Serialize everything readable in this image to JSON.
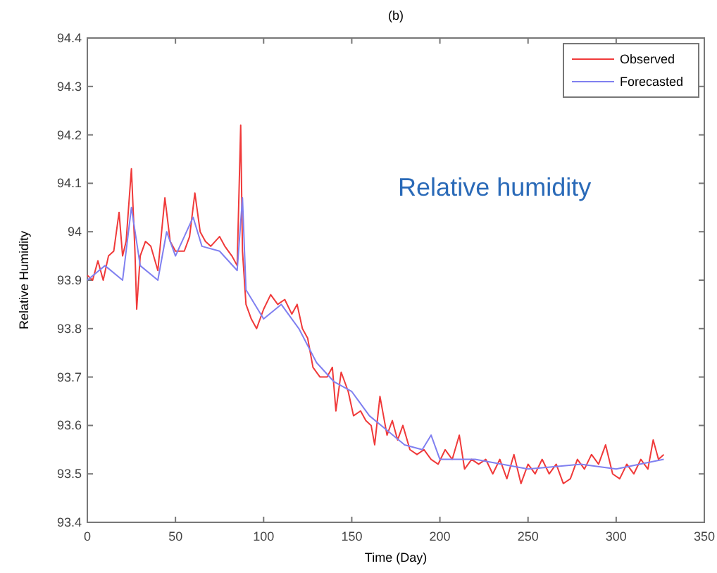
{
  "chart_data": {
    "type": "line",
    "title": "(b)",
    "xlabel": "Time (Day)",
    "ylabel": "Relative Humidity",
    "annotations": [
      "Relative humidity"
    ],
    "xlim": [
      0,
      350
    ],
    "xticks": [
      0,
      50,
      100,
      150,
      200,
      250,
      300,
      350
    ],
    "ylim": [
      93.4,
      94.4
    ],
    "yticks": [
      93.4,
      93.5,
      93.6,
      93.7,
      93.8,
      93.9,
      94,
      94.1,
      94.2,
      94.3,
      94.4
    ],
    "legend": "top right",
    "grid": false,
    "series": [
      {
        "name": "Observed",
        "color": "#f03a3a",
        "x": [
          0,
          3,
          6,
          9,
          12,
          15,
          18,
          20,
          22,
          25,
          27,
          28,
          30,
          33,
          36,
          40,
          44,
          47,
          50,
          55,
          58,
          61,
          64,
          67,
          70,
          75,
          78,
          82,
          85,
          87,
          88,
          90,
          93,
          96,
          100,
          104,
          108,
          112,
          116,
          119,
          122,
          125,
          128,
          132,
          136,
          139,
          141,
          144,
          148,
          151,
          155,
          158,
          161,
          163,
          166,
          170,
          173,
          176,
          179,
          183,
          187,
          191,
          195,
          199,
          203,
          207,
          211,
          214,
          218,
          222,
          226,
          230,
          234,
          238,
          242,
          246,
          250,
          254,
          258,
          262,
          266,
          270,
          274,
          278,
          282,
          286,
          290,
          294,
          298,
          302,
          306,
          310,
          314,
          318,
          321,
          324,
          327
        ],
        "values": [
          93.91,
          93.9,
          93.94,
          93.9,
          93.95,
          93.96,
          94.04,
          93.95,
          93.98,
          94.13,
          93.96,
          93.84,
          93.95,
          93.98,
          93.97,
          93.92,
          94.07,
          93.98,
          93.96,
          93.96,
          93.99,
          94.08,
          94,
          93.98,
          93.97,
          93.99,
          93.97,
          93.95,
          93.93,
          94.22,
          93.96,
          93.85,
          93.82,
          93.8,
          93.84,
          93.87,
          93.85,
          93.86,
          93.83,
          93.85,
          93.8,
          93.78,
          93.72,
          93.7,
          93.7,
          93.72,
          93.63,
          93.71,
          93.67,
          93.62,
          93.63,
          93.61,
          93.6,
          93.56,
          93.66,
          93.58,
          93.61,
          93.57,
          93.6,
          93.55,
          93.54,
          93.55,
          93.53,
          93.52,
          93.55,
          93.53,
          93.58,
          93.51,
          93.53,
          93.52,
          93.53,
          93.5,
          93.53,
          93.49,
          93.54,
          93.48,
          93.52,
          93.5,
          93.53,
          93.5,
          93.52,
          93.48,
          93.49,
          93.53,
          93.51,
          93.54,
          93.52,
          93.56,
          93.5,
          93.49,
          93.52,
          93.5,
          93.53,
          93.51,
          93.57,
          93.53,
          93.54
        ]
      },
      {
        "name": "Forecasted",
        "color": "#8080f0",
        "x": [
          0,
          10,
          20,
          25,
          30,
          40,
          45,
          50,
          60,
          65,
          75,
          85,
          88,
          90,
          100,
          110,
          120,
          130,
          140,
          150,
          160,
          170,
          180,
          190,
          195,
          200,
          220,
          250,
          280,
          300,
          327
        ],
        "values": [
          93.9,
          93.93,
          93.9,
          94.05,
          93.93,
          93.9,
          94,
          93.95,
          94.03,
          93.97,
          93.96,
          93.92,
          94.07,
          93.88,
          93.82,
          93.85,
          93.8,
          93.73,
          93.69,
          93.67,
          93.62,
          93.59,
          93.56,
          93.55,
          93.58,
          93.53,
          93.53,
          93.51,
          93.52,
          93.51,
          93.53
        ]
      }
    ]
  }
}
